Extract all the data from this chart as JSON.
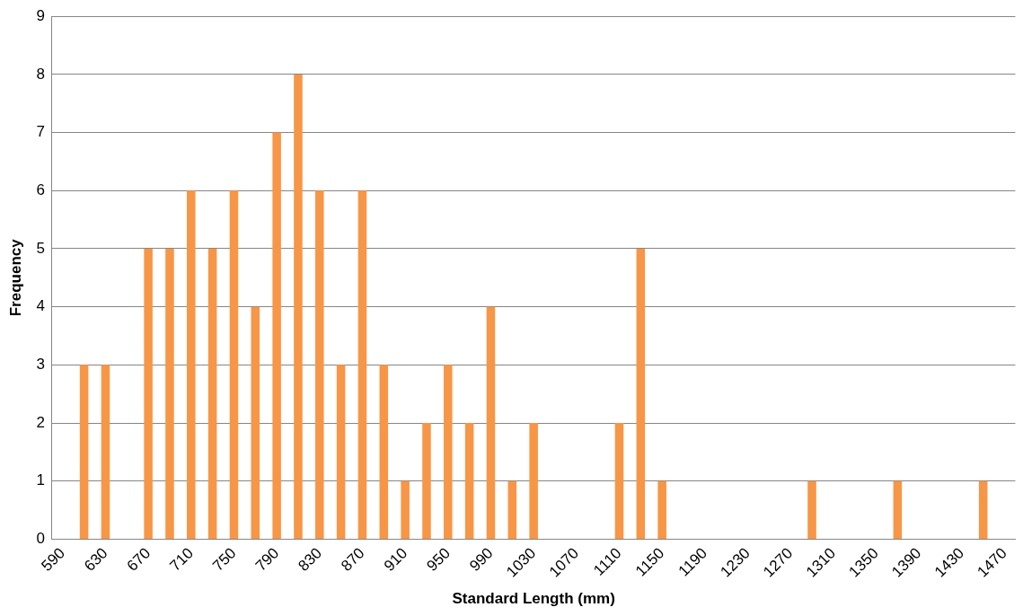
{
  "chart_data": {
    "type": "bar",
    "xlabel": "Standard Length (mm)",
    "ylabel": "Frequency",
    "categories": [
      "590",
      null,
      "630",
      null,
      "670",
      null,
      "710",
      null,
      "750",
      null,
      "790",
      null,
      "830",
      null,
      "870",
      null,
      "910",
      null,
      "950",
      null,
      "990",
      null,
      "1030",
      null,
      "1070",
      null,
      "1110",
      null,
      "1150",
      null,
      "1190",
      null,
      "1230",
      null,
      "1270",
      null,
      "1310",
      null,
      "1350",
      null,
      "1390",
      null,
      "1430",
      null,
      "1470"
    ],
    "values": [
      0,
      3,
      3,
      0,
      5,
      5,
      6,
      5,
      6,
      4,
      7,
      8,
      6,
      3,
      6,
      3,
      1,
      2,
      3,
      2,
      4,
      1,
      2,
      0,
      0,
      0,
      2,
      5,
      1,
      0,
      0,
      0,
      0,
      0,
      0,
      1,
      0,
      0,
      0,
      1,
      0,
      0,
      0,
      1,
      0
    ],
    "color": "#f79646",
    "ylim": [
      0,
      9
    ],
    "yticks": [
      0,
      1,
      2,
      3,
      4,
      5,
      6,
      7,
      8,
      9
    ],
    "grid": "y",
    "legend": false
  }
}
